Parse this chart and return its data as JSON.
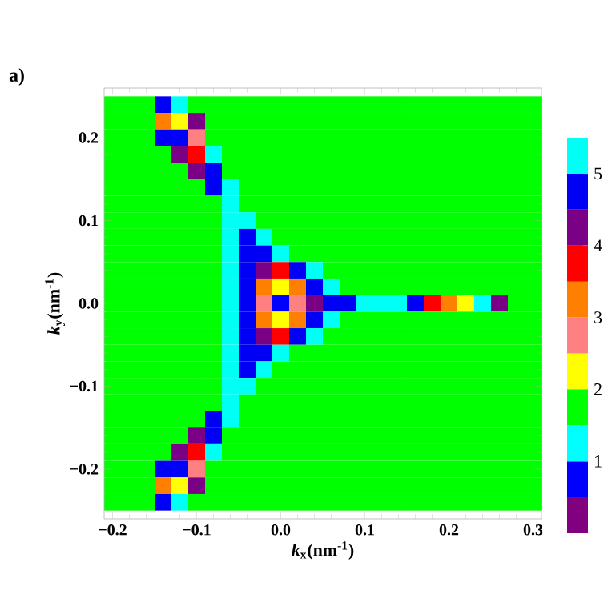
{
  "chart_data": {
    "type": "heatmap",
    "xlabel": "*k*$_{x}$(nm$^{-1}$)",
    "ylabel": "*k*$_{y}$(nm$^{-1}$)",
    "annotations": [
      "a)"
    ],
    "xlim": [
      -0.21,
      0.31
    ],
    "ylim": [
      -0.26,
      0.26
    ],
    "xticks": [
      {
        "value": -0.2,
        "label": "−0.2"
      },
      {
        "value": -0.1,
        "label": "−0.1"
      },
      {
        "value": 0,
        "label": "0.0"
      },
      {
        "value": 0.1,
        "label": "0.1"
      },
      {
        "value": 0.2,
        "label": "0.2"
      },
      {
        "value": 0.3,
        "label": "0.3"
      }
    ],
    "yticks": [
      {
        "value": -0.2,
        "label": "−0.2"
      },
      {
        "value": -0.1,
        "label": "−0.1"
      },
      {
        "value": 0,
        "label": "0.0"
      },
      {
        "value": 0.1,
        "label": "0.1"
      },
      {
        "value": 0.2,
        "label": "0.2"
      }
    ],
    "clim": [
      0,
      5.5
    ],
    "cticks": [
      1,
      2,
      3,
      4,
      5
    ],
    "colors": [
      "#800080",
      "#0000ff",
      "#00ffff",
      "#00ff00",
      "#ffff00",
      "#ff8080",
      "#ff8000",
      "#ff0000",
      "#7a0086",
      "#0000f5",
      "#00fff4"
    ],
    "x": [
      -0.2,
      -0.18,
      -0.16,
      -0.14,
      -0.12,
      -0.1,
      -0.08,
      -0.06,
      -0.04,
      -0.02,
      0,
      0.02,
      0.04,
      0.06,
      0.08,
      0.1,
      0.12,
      0.14,
      0.16,
      0.18,
      0.2,
      0.22,
      0.24,
      0.26,
      0.28,
      0.3
    ],
    "y": [
      0.24,
      0.22,
      0.2,
      0.18,
      0.16,
      0.14,
      0.12,
      0.1,
      0.08,
      0.06,
      0.04,
      0.02,
      0,
      -0.02,
      -0.04,
      -0.06,
      -0.08,
      -0.1,
      -0.12,
      -0.14,
      -0.16,
      -0.18,
      -0.2,
      -0.22,
      -0.24
    ],
    "cells": [
      [
        1.75,
        1.75,
        1.75,
        4.75,
        5.25,
        1.75,
        1.75,
        1.75,
        1.75,
        1.75,
        1.75,
        1.75,
        1.75,
        1.75,
        1.75,
        1.75,
        1.75,
        1.75,
        1.75,
        1.75,
        1.75,
        1.75,
        1.75,
        1.75,
        1.75,
        1.75
      ],
      [
        1.75,
        1.75,
        1.75,
        3.25,
        2.25,
        4.25,
        1.75,
        1.75,
        1.75,
        1.75,
        1.75,
        1.75,
        1.75,
        1.75,
        1.75,
        1.75,
        1.75,
        1.75,
        1.75,
        1.75,
        1.75,
        1.75,
        1.75,
        1.75,
        1.75,
        1.75
      ],
      [
        1.75,
        1.75,
        1.75,
        4.75,
        0.75,
        2.75,
        1.75,
        1.75,
        1.75,
        1.75,
        1.75,
        1.75,
        1.75,
        1.75,
        1.75,
        1.75,
        1.75,
        1.75,
        1.75,
        1.75,
        1.75,
        1.75,
        1.75,
        1.75,
        1.75,
        1.75
      ],
      [
        1.75,
        1.75,
        1.75,
        1.75,
        4.25,
        3.75,
        5.25,
        1.75,
        1.75,
        1.75,
        1.75,
        1.75,
        1.75,
        1.75,
        1.75,
        1.75,
        1.75,
        1.75,
        1.75,
        1.75,
        1.75,
        1.75,
        1.75,
        1.75,
        1.75,
        1.75
      ],
      [
        1.75,
        1.75,
        1.75,
        1.75,
        1.75,
        4.25,
        4.75,
        1.75,
        1.75,
        1.75,
        1.75,
        1.75,
        1.75,
        1.75,
        1.75,
        1.75,
        1.75,
        1.75,
        1.75,
        1.75,
        1.75,
        1.75,
        1.75,
        1.75,
        1.75,
        1.75
      ],
      [
        1.75,
        1.75,
        1.75,
        1.75,
        1.75,
        1.75,
        4.75,
        5.25,
        1.75,
        1.75,
        1.75,
        1.75,
        1.75,
        1.75,
        1.75,
        1.75,
        1.75,
        1.75,
        1.75,
        1.75,
        1.75,
        1.75,
        1.75,
        1.75,
        1.75,
        1.75
      ],
      [
        1.75,
        1.75,
        1.75,
        1.75,
        1.75,
        1.75,
        1.75,
        5.25,
        1.75,
        1.75,
        1.75,
        1.75,
        1.75,
        1.75,
        1.75,
        1.75,
        1.75,
        1.75,
        1.75,
        1.75,
        1.75,
        1.75,
        1.75,
        1.75,
        1.75,
        1.75
      ],
      [
        1.75,
        1.75,
        1.75,
        1.75,
        1.75,
        1.75,
        1.75,
        5.25,
        5.25,
        1.75,
        1.75,
        1.75,
        1.75,
        1.75,
        1.75,
        1.75,
        1.75,
        1.75,
        1.75,
        1.75,
        1.75,
        1.75,
        1.75,
        1.75,
        1.75,
        1.75
      ],
      [
        1.75,
        1.75,
        1.75,
        1.75,
        1.75,
        1.75,
        1.75,
        5.25,
        4.75,
        5.25,
        1.75,
        1.75,
        1.75,
        1.75,
        1.75,
        1.75,
        1.75,
        1.75,
        1.75,
        1.75,
        1.75,
        1.75,
        1.75,
        1.75,
        1.75,
        1.75
      ],
      [
        1.75,
        1.75,
        1.75,
        1.75,
        1.75,
        1.75,
        1.75,
        5.25,
        4.75,
        4.75,
        5.25,
        1.75,
        1.75,
        1.75,
        1.75,
        1.75,
        1.75,
        1.75,
        1.75,
        1.75,
        1.75,
        1.75,
        1.75,
        1.75,
        1.75,
        1.75
      ],
      [
        1.75,
        1.75,
        1.75,
        1.75,
        1.75,
        1.75,
        1.75,
        5.25,
        4.75,
        4.25,
        3.75,
        4.75,
        5.25,
        1.75,
        1.75,
        1.75,
        1.75,
        1.75,
        1.75,
        1.75,
        1.75,
        1.75,
        1.75,
        1.75,
        1.75,
        1.75
      ],
      [
        1.75,
        1.75,
        1.75,
        1.75,
        1.75,
        1.75,
        1.75,
        5.25,
        4.75,
        3.25,
        2.25,
        3.25,
        4.75,
        5.25,
        1.75,
        1.75,
        1.75,
        1.75,
        1.75,
        1.75,
        1.75,
        1.75,
        1.75,
        1.75,
        1.75,
        1.75
      ],
      [
        1.75,
        1.75,
        1.75,
        1.75,
        1.75,
        1.75,
        1.75,
        5.25,
        4.75,
        2.75,
        0.75,
        2.75,
        4.25,
        4.75,
        4.75,
        5.25,
        5.25,
        5.25,
        4.75,
        3.75,
        3.25,
        2.25,
        1.25,
        4.25,
        1.75,
        1.75
      ],
      [
        1.75,
        1.75,
        1.75,
        1.75,
        1.75,
        1.75,
        1.75,
        5.25,
        4.75,
        3.25,
        2.25,
        3.25,
        4.75,
        5.25,
        1.75,
        1.75,
        1.75,
        1.75,
        1.75,
        1.75,
        1.75,
        1.75,
        1.75,
        1.75,
        1.75,
        1.75
      ],
      [
        1.75,
        1.75,
        1.75,
        1.75,
        1.75,
        1.75,
        1.75,
        5.25,
        4.75,
        4.25,
        3.75,
        4.75,
        5.25,
        1.75,
        1.75,
        1.75,
        1.75,
        1.75,
        1.75,
        1.75,
        1.75,
        1.75,
        1.75,
        1.75,
        1.75,
        1.75
      ],
      [
        1.75,
        1.75,
        1.75,
        1.75,
        1.75,
        1.75,
        1.75,
        5.25,
        4.75,
        4.75,
        5.25,
        1.75,
        1.75,
        1.75,
        1.75,
        1.75,
        1.75,
        1.75,
        1.75,
        1.75,
        1.75,
        1.75,
        1.75,
        1.75,
        1.75,
        1.75
      ],
      [
        1.75,
        1.75,
        1.75,
        1.75,
        1.75,
        1.75,
        1.75,
        5.25,
        4.75,
        5.25,
        1.75,
        1.75,
        1.75,
        1.75,
        1.75,
        1.75,
        1.75,
        1.75,
        1.75,
        1.75,
        1.75,
        1.75,
        1.75,
        1.75,
        1.75,
        1.75
      ],
      [
        1.75,
        1.75,
        1.75,
        1.75,
        1.75,
        1.75,
        1.75,
        5.25,
        5.25,
        1.75,
        1.75,
        1.75,
        1.75,
        1.75,
        1.75,
        1.75,
        1.75,
        1.75,
        1.75,
        1.75,
        1.75,
        1.75,
        1.75,
        1.75,
        1.75,
        1.75
      ],
      [
        1.75,
        1.75,
        1.75,
        1.75,
        1.75,
        1.75,
        1.75,
        5.25,
        1.75,
        1.75,
        1.75,
        1.75,
        1.75,
        1.75,
        1.75,
        1.75,
        1.75,
        1.75,
        1.75,
        1.75,
        1.75,
        1.75,
        1.75,
        1.75,
        1.75,
        1.75
      ],
      [
        1.75,
        1.75,
        1.75,
        1.75,
        1.75,
        1.75,
        4.75,
        5.25,
        1.75,
        1.75,
        1.75,
        1.75,
        1.75,
        1.75,
        1.75,
        1.75,
        1.75,
        1.75,
        1.75,
        1.75,
        1.75,
        1.75,
        1.75,
        1.75,
        1.75,
        1.75
      ],
      [
        1.75,
        1.75,
        1.75,
        1.75,
        1.75,
        4.25,
        4.75,
        1.75,
        1.75,
        1.75,
        1.75,
        1.75,
        1.75,
        1.75,
        1.75,
        1.75,
        1.75,
        1.75,
        1.75,
        1.75,
        1.75,
        1.75,
        1.75,
        1.75,
        1.75,
        1.75
      ],
      [
        1.75,
        1.75,
        1.75,
        1.75,
        4.25,
        3.75,
        5.25,
        1.75,
        1.75,
        1.75,
        1.75,
        1.75,
        1.75,
        1.75,
        1.75,
        1.75,
        1.75,
        1.75,
        1.75,
        1.75,
        1.75,
        1.75,
        1.75,
        1.75,
        1.75,
        1.75
      ],
      [
        1.75,
        1.75,
        1.75,
        4.75,
        0.75,
        2.75,
        1.75,
        1.75,
        1.75,
        1.75,
        1.75,
        1.75,
        1.75,
        1.75,
        1.75,
        1.75,
        1.75,
        1.75,
        1.75,
        1.75,
        1.75,
        1.75,
        1.75,
        1.75,
        1.75,
        1.75
      ],
      [
        1.75,
        1.75,
        1.75,
        3.25,
        2.25,
        4.25,
        1.75,
        1.75,
        1.75,
        1.75,
        1.75,
        1.75,
        1.75,
        1.75,
        1.75,
        1.75,
        1.75,
        1.75,
        1.75,
        1.75,
        1.75,
        1.75,
        1.75,
        1.75,
        1.75,
        1.75
      ],
      [
        1.75,
        1.75,
        1.75,
        4.75,
        5.25,
        1.75,
        1.75,
        1.75,
        1.75,
        1.75,
        1.75,
        1.75,
        1.75,
        1.75,
        1.75,
        1.75,
        1.75,
        1.75,
        1.75,
        1.75,
        1.75,
        1.75,
        1.75,
        1.75,
        1.75,
        1.75
      ]
    ]
  }
}
